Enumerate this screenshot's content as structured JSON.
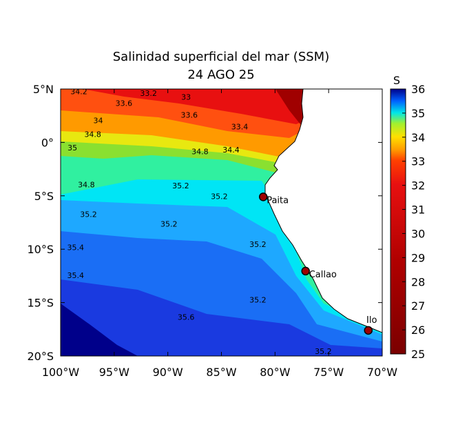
{
  "title": "Salinidad superficial del mar (SSM)",
  "subtitle": "24 AGO 25",
  "map": {
    "lon_range": [
      -100,
      -70
    ],
    "lat_range": [
      -20,
      5
    ],
    "lon_ticks": [
      {
        "value": -100,
        "label": "100°W"
      },
      {
        "value": -95,
        "label": "95°W"
      },
      {
        "value": -90,
        "label": "90°W"
      },
      {
        "value": -85,
        "label": "85°W"
      },
      {
        "value": -80,
        "label": "80°W"
      },
      {
        "value": -75,
        "label": "75°W"
      },
      {
        "value": -70,
        "label": "70°W"
      }
    ],
    "lat_ticks": [
      {
        "value": 5,
        "label": "5°N"
      },
      {
        "value": 0,
        "label": "0°"
      },
      {
        "value": -5,
        "label": "5°S"
      },
      {
        "value": -10,
        "label": "10°S"
      },
      {
        "value": -15,
        "label": "15°S"
      },
      {
        "value": -20,
        "label": "20°S"
      }
    ],
    "cities": [
      {
        "name": "Paita",
        "lon": -81.1,
        "lat": -5.1
      },
      {
        "name": "Callao",
        "lon": -77.15,
        "lat": -12.05
      },
      {
        "name": "Ilo",
        "lon": -71.3,
        "lat": -17.6
      }
    ],
    "contour_labels": [
      {
        "label": "34.2",
        "lon": -98.3,
        "lat": 4.7
      },
      {
        "label": "33.2",
        "lon": -91.8,
        "lat": 4.55
      },
      {
        "label": "33.6",
        "lon": -94.1,
        "lat": 3.6
      },
      {
        "label": "33",
        "lon": -88.3,
        "lat": 4.2
      },
      {
        "label": "33.6",
        "lon": -88,
        "lat": 2.5
      },
      {
        "label": "34",
        "lon": -96.5,
        "lat": 2.0
      },
      {
        "label": "34.8",
        "lon": -97,
        "lat": 0.7
      },
      {
        "label": "33.4",
        "lon": -83.3,
        "lat": 1.4
      },
      {
        "label": "35",
        "lon": -98.9,
        "lat": -0.55
      },
      {
        "label": "34.8",
        "lon": -87,
        "lat": -0.9
      },
      {
        "label": "34.4",
        "lon": -84.1,
        "lat": -0.75
      },
      {
        "label": "34.8",
        "lon": -97.6,
        "lat": -4
      },
      {
        "label": "35.2",
        "lon": -88.8,
        "lat": -4.1
      },
      {
        "label": "35.2",
        "lon": -85.2,
        "lat": -5.1
      },
      {
        "label": "35.2",
        "lon": -97.4,
        "lat": -6.8
      },
      {
        "label": "35.2",
        "lon": -89.9,
        "lat": -7.7
      },
      {
        "label": "35.2",
        "lon": -81.6,
        "lat": -9.6
      },
      {
        "label": "35.4",
        "lon": -98.6,
        "lat": -9.9
      },
      {
        "label": "35.4",
        "lon": -98.6,
        "lat": -12.5
      },
      {
        "label": "35.2",
        "lon": -81.6,
        "lat": -14.8
      },
      {
        "label": "35.6",
        "lon": -88.3,
        "lat": -16.4
      },
      {
        "label": "35.2",
        "lon": -75.5,
        "lat": -19.6
      }
    ]
  },
  "colorbar": {
    "label": "S",
    "range": [
      25,
      36
    ],
    "ticks": [
      25,
      26,
      27,
      28,
      29,
      30,
      31,
      32,
      33,
      34,
      35,
      36
    ]
  }
}
